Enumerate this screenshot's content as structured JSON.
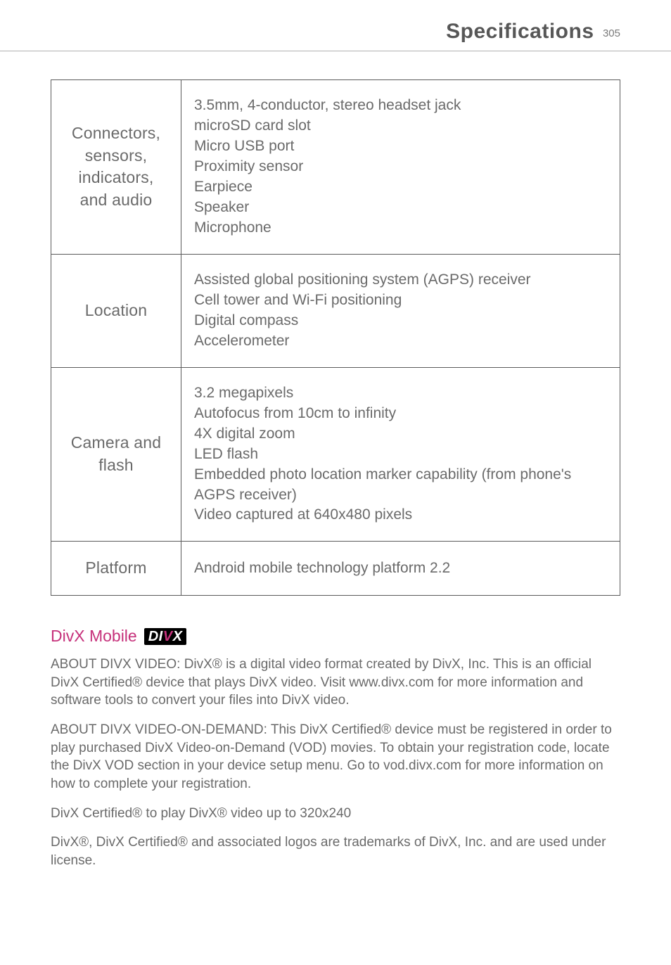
{
  "header": {
    "title": "Specifications",
    "page_number": "305"
  },
  "spec_table": {
    "rows": [
      {
        "label": "Connectors, sensors, indicators, and audio",
        "value": "3.5mm, 4-conductor, stereo headset jack\nmicroSD card slot\nMicro USB port\nProximity sensor\nEarpiece\nSpeaker\nMicrophone"
      },
      {
        "label": "Location",
        "value": "Assisted global positioning system (AGPS) receiver\nCell tower and Wi-Fi positioning\nDigital compass\nAccelerometer"
      },
      {
        "label": "Camera and flash",
        "value": "3.2 megapixels\nAutofocus from 10cm to infinity\n4X digital zoom\nLED flash\nEmbedded photo location marker capability (from phone's AGPS receiver)\nVideo captured at 640x480 pixels"
      },
      {
        "label": "Platform",
        "value": "Android mobile technology platform 2.2"
      }
    ]
  },
  "divx": {
    "heading_text": "DivX Mobile",
    "logo_text_1": "DI",
    "logo_text_v": "V",
    "logo_text_2": "X",
    "paragraphs": [
      "ABOUT DIVX VIDEO: DivX® is a digital video format created by DivX, Inc. This is an official DivX Certified® device that plays DivX video. Visit www.divx.com for more information and software tools to convert your files into DivX video.",
      "ABOUT DIVX VIDEO-ON-DEMAND: This DivX Certified® device must be registered in order to play purchased DivX Video-on-Demand (VOD) movies. To obtain your registration code, locate the DivX VOD section in your device setup menu. Go to vod.divx.com for more information on how to complete your registration.",
      "DivX Certified® to play DivX® video up to 320x240",
      "DivX®, DivX Certified® and associated logos are trademarks of DivX, Inc. and are used under license."
    ]
  },
  "colors": {
    "text": "#6a6a6a",
    "heading": "#575757",
    "accent": "#c6317b",
    "border": "#5a5a5a",
    "rule": "#b0b0b0"
  }
}
